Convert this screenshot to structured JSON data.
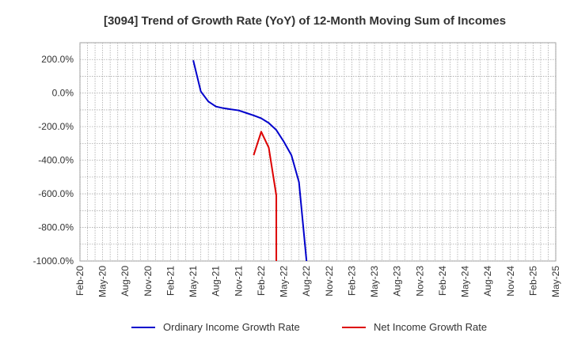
{
  "chart_data": {
    "type": "line",
    "title": "[3094]  Trend of Growth Rate (YoY) of 12-Month Moving Sum of Incomes",
    "y_ticks": [
      "200.0%",
      "0.0%",
      "-200.0%",
      "-400.0%",
      "-600.0%",
      "-800.0%",
      "-1000.0%"
    ],
    "y_tick_values": [
      200,
      0,
      -200,
      -400,
      -600,
      -800,
      -1000
    ],
    "ylim": [
      -1000,
      300
    ],
    "x_ticks": [
      "Feb-20",
      "May-20",
      "Aug-20",
      "Nov-20",
      "Feb-21",
      "May-21",
      "Aug-21",
      "Nov-21",
      "Feb-22",
      "May-22",
      "Aug-22",
      "Nov-22",
      "Feb-23",
      "May-23",
      "Aug-23",
      "Nov-23",
      "Feb-24",
      "May-24",
      "Aug-24",
      "Nov-24",
      "Feb-25",
      "May-25"
    ],
    "grid": true,
    "legend_position": "bottom",
    "series": [
      {
        "name": "Ordinary Income Growth Rate",
        "color": "#0000cc",
        "points": [
          [
            "May-21",
            195
          ],
          [
            "Jun-21",
            10
          ],
          [
            "Jul-21",
            -50
          ],
          [
            "Aug-21",
            -80
          ],
          [
            "Sep-21",
            -90
          ],
          [
            "Oct-21",
            -97
          ],
          [
            "Nov-21",
            -103
          ],
          [
            "Dec-21",
            -118
          ],
          [
            "Jan-22",
            -133
          ],
          [
            "Feb-22",
            -150
          ],
          [
            "Mar-22",
            -178
          ],
          [
            "Apr-22",
            -220
          ],
          [
            "May-22",
            -290
          ],
          [
            "Jun-22",
            -370
          ],
          [
            "Jul-22",
            -530
          ],
          [
            "Aug-22",
            -1000
          ]
        ]
      },
      {
        "name": "Net Income Growth Rate",
        "color": "#dd0000",
        "points": [
          [
            "Jan-22",
            -370
          ],
          [
            "Feb-22",
            -230
          ],
          [
            "Mar-22",
            -325
          ],
          [
            "Apr-22",
            -610
          ],
          [
            "Apr-22",
            -1000
          ]
        ]
      }
    ]
  }
}
